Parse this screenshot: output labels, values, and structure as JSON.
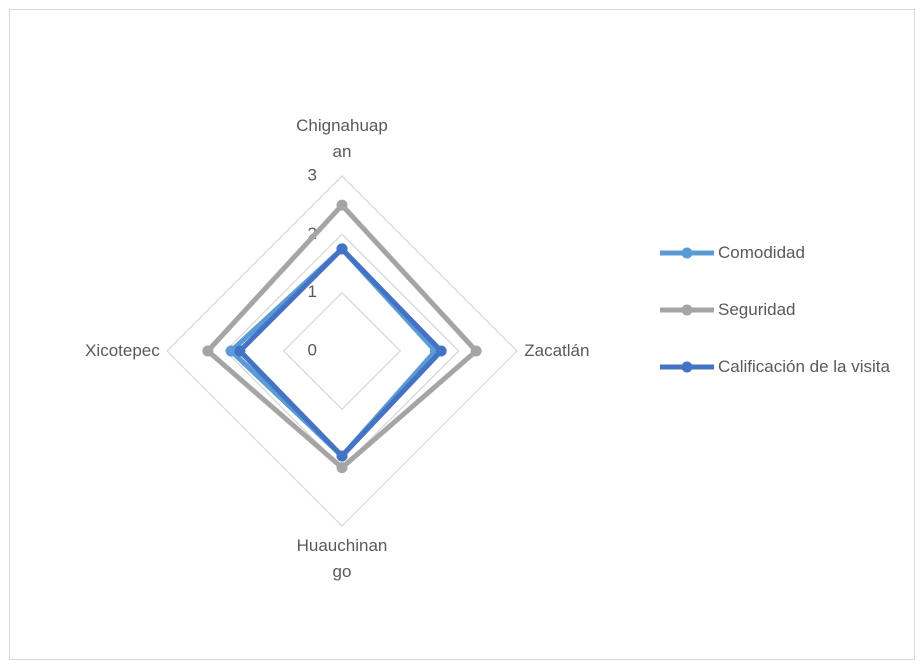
{
  "chart_data": {
    "type": "radar",
    "categories": [
      "Chignahuapan",
      "Zacatlán",
      "Huauchinango",
      "Xicotepec"
    ],
    "series": [
      {
        "name": "Comodidad",
        "color": "#5b9bd5",
        "values": [
          1.75,
          1.6,
          1.8,
          1.9
        ]
      },
      {
        "name": "Seguridad",
        "color": "#a5a5a5",
        "values": [
          2.5,
          2.3,
          2.0,
          2.3
        ]
      },
      {
        "name": "Calificación de la visita",
        "color": "#4472c4",
        "values": [
          1.75,
          1.7,
          1.8,
          1.75
        ]
      }
    ],
    "ylim": [
      0,
      3
    ],
    "yticks": [
      0,
      1,
      2,
      3
    ],
    "grid": true,
    "legend": "right"
  }
}
